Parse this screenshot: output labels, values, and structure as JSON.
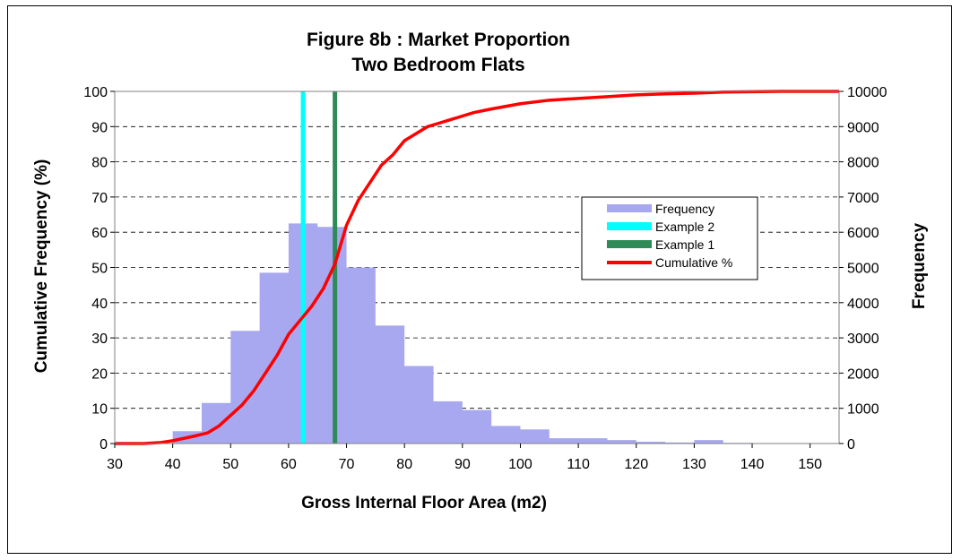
{
  "chart_data": {
    "type": "histogram with cumulative line",
    "title_line1": "Figure 8b : Market Proportion",
    "title_line2": "Two Bedroom Flats",
    "xlabel": "Gross Internal Floor Area (m2)",
    "ylabel_left": "Cumulative Frequency (%)",
    "ylabel_right": "Frequency",
    "xlim": [
      30,
      155
    ],
    "ylim_left": [
      0,
      100
    ],
    "ylim_right": [
      0,
      10000
    ],
    "x_ticks": [
      "30",
      "40",
      "50",
      "60",
      "70",
      "80",
      "90",
      "100",
      "110",
      "120",
      "130",
      "140",
      "150"
    ],
    "x_tick_values": [
      30,
      40,
      50,
      60,
      70,
      80,
      90,
      100,
      110,
      120,
      130,
      140,
      150
    ],
    "y_left_ticks": [
      "0",
      "10",
      "20",
      "30",
      "40",
      "50",
      "60",
      "70",
      "80",
      "90",
      "100"
    ],
    "y_left_tick_values": [
      0,
      10,
      20,
      30,
      40,
      50,
      60,
      70,
      80,
      90,
      100
    ],
    "y_right_ticks": [
      "0",
      "1000",
      "2000",
      "3000",
      "4000",
      "5000",
      "6000",
      "7000",
      "8000",
      "9000",
      "10000"
    ],
    "y_right_tick_values": [
      0,
      1000,
      2000,
      3000,
      4000,
      5000,
      6000,
      7000,
      8000,
      9000,
      10000
    ],
    "grid": "horizontal dashed",
    "legend_position": "right",
    "frequency": {
      "name": "Frequency",
      "color": "#A8A8F0",
      "x": [
        30,
        35,
        40,
        45,
        50,
        55,
        60,
        65,
        70,
        75,
        80,
        85,
        90,
        95,
        100,
        105,
        110,
        115,
        120,
        125,
        130,
        135,
        140,
        145,
        150,
        155
      ],
      "values": [
        0,
        0,
        350,
        1150,
        3200,
        4850,
        6250,
        6150,
        5000,
        3350,
        2200,
        1200,
        950,
        500,
        400,
        150,
        150,
        100,
        50,
        30,
        100,
        20,
        10,
        10,
        10,
        0
      ]
    },
    "example2": {
      "name": "Example 2",
      "color": "#00FFFF",
      "x": 62.5
    },
    "example1": {
      "name": "Example 1",
      "color": "#2E8B57",
      "x": 68
    },
    "cumulative": {
      "name": "Cumulative %",
      "color": "#FF0000",
      "x": [
        30,
        35,
        38,
        40,
        42,
        44,
        46,
        48,
        50,
        52,
        54,
        56,
        58,
        60,
        62,
        64,
        66,
        68,
        70,
        72,
        74,
        76,
        78,
        80,
        82,
        84,
        86,
        88,
        90,
        92,
        95,
        100,
        105,
        110,
        115,
        120,
        125,
        130,
        135,
        140,
        145,
        150,
        155
      ],
      "y": [
        0,
        0,
        0.3,
        0.8,
        1.5,
        2.2,
        3,
        5,
        8,
        11,
        15,
        20,
        25,
        31,
        35,
        39,
        44,
        51,
        62,
        69,
        74,
        79,
        82,
        86,
        88,
        90,
        91,
        92,
        93,
        94,
        95,
        96.5,
        97.5,
        98,
        98.5,
        99,
        99.3,
        99.5,
        99.8,
        99.9,
        100,
        100,
        100
      ]
    }
  }
}
